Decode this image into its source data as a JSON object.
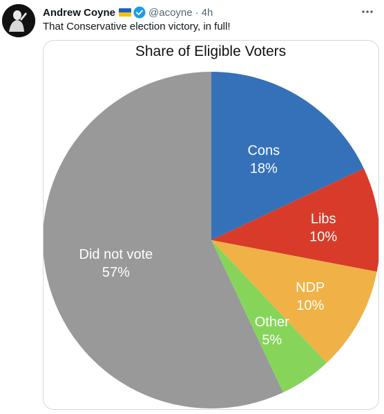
{
  "tweet": {
    "author_name": "Andrew Coyne",
    "handle": "@acoyne",
    "separator": "·",
    "timestamp": "4h",
    "text": "That Conservative election victory, in full!",
    "icons": {
      "avatar": "avatar-image",
      "flag": "ukraine-flag-icon",
      "verified": "verified-badge-icon",
      "more": "more-options-icon"
    }
  },
  "colors": {
    "flag_blue": "#1f5fbf",
    "flag_yellow": "#f5c400",
    "verified": "#1d9bf0"
  },
  "chart_data": {
    "type": "pie",
    "title": "Share of Eligible Voters",
    "categories": [
      "Cons",
      "Libs",
      "NDP",
      "Other",
      "Did not vote"
    ],
    "values": [
      18,
      10,
      10,
      5,
      57
    ],
    "value_labels": [
      "18%",
      "10%",
      "10%",
      "5%",
      "57%"
    ],
    "colors": [
      "#3571b8",
      "#d83b2a",
      "#f0b246",
      "#86d55a",
      "#999999"
    ],
    "start_angle_deg": 0,
    "direction": "clockwise",
    "legend": "none",
    "label_color": "#ffffff"
  }
}
